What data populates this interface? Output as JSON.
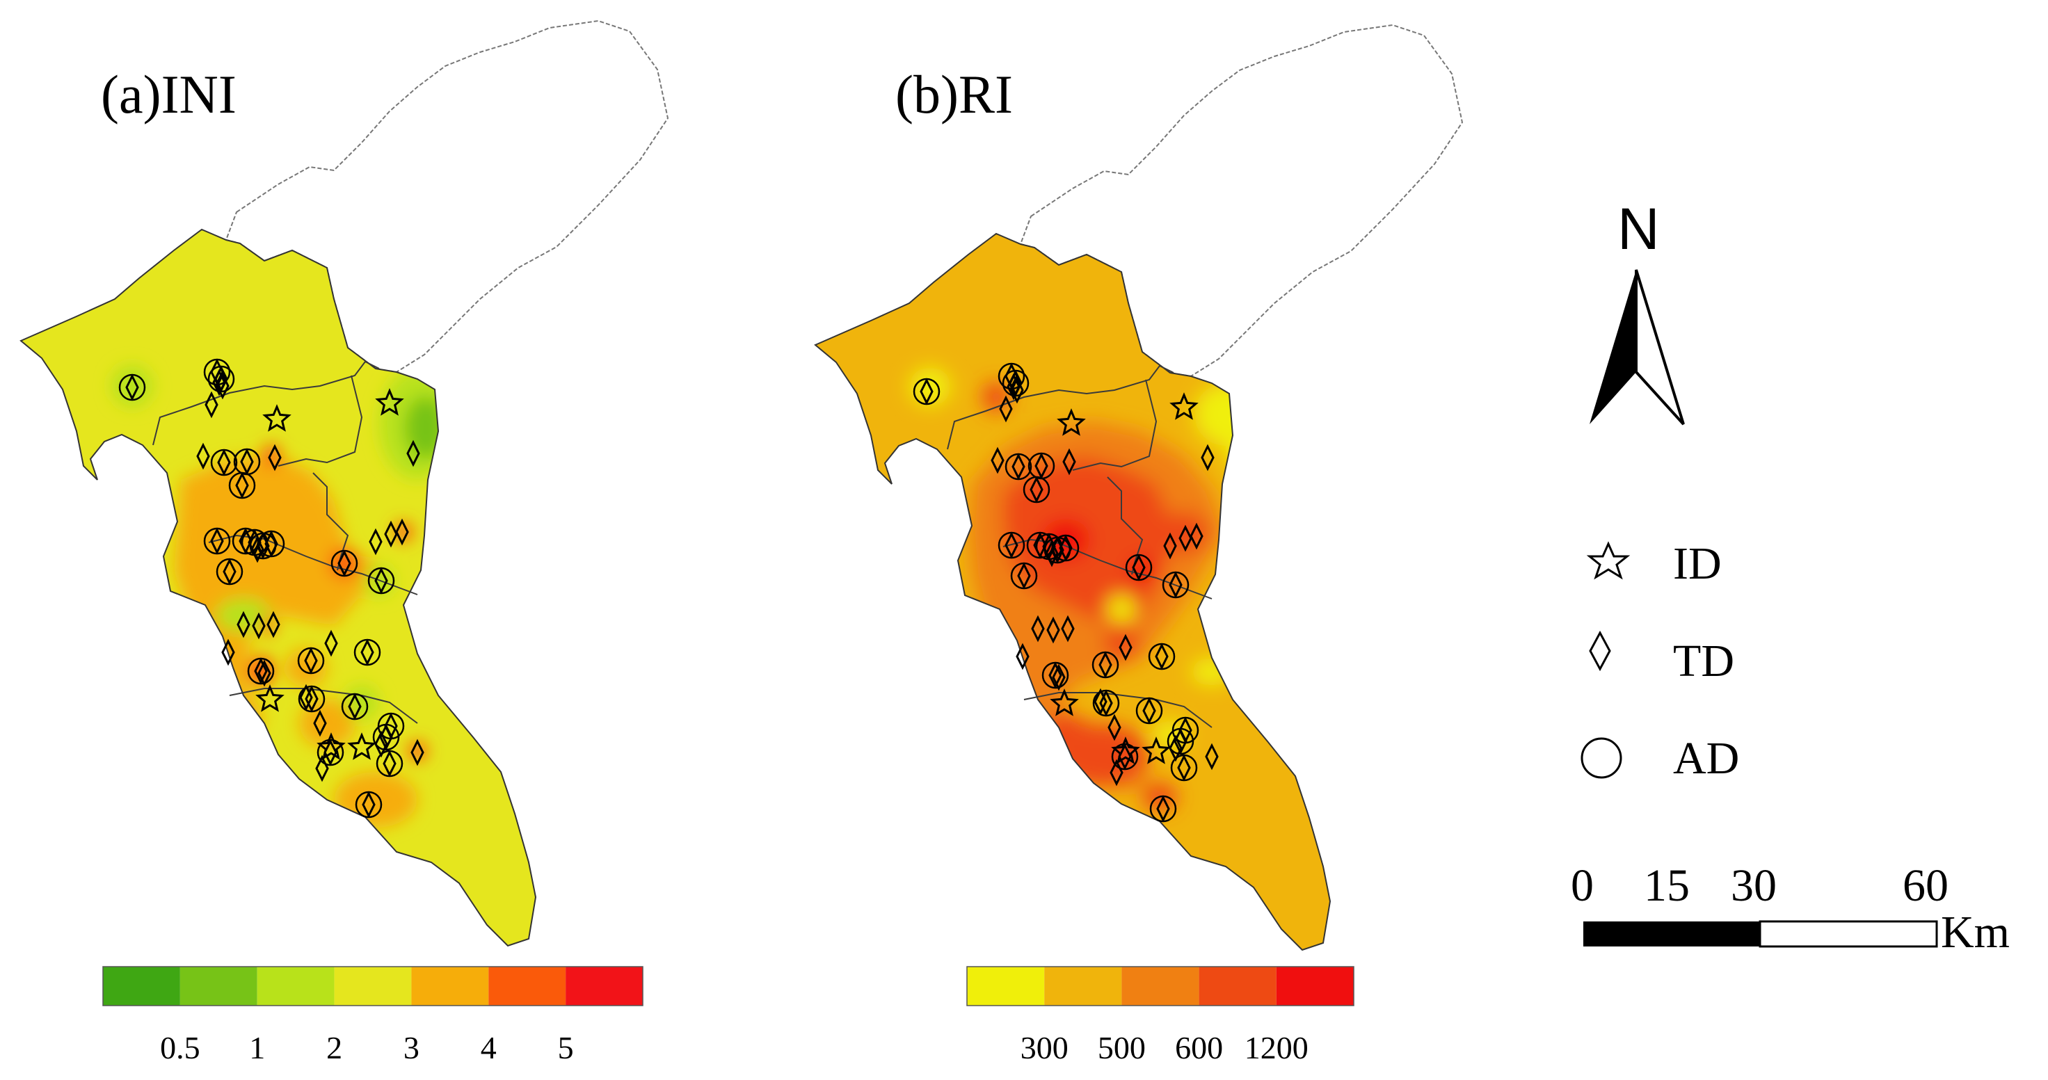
{
  "panels": {
    "a": {
      "title": "(a)INI"
    },
    "b": {
      "title": "(b)RI"
    }
  },
  "legend_ini": {
    "colors": [
      "#3fa713",
      "#77c317",
      "#b8e21a",
      "#e5e61e",
      "#f6ad0a",
      "#fa5a0a",
      "#f21318"
    ],
    "ticks": [
      "0.5",
      "1",
      "2",
      "3",
      "4",
      "5"
    ]
  },
  "legend_ri": {
    "colors": [
      "#f0ef0a",
      "#f0b40c",
      "#f08012",
      "#ee4a13",
      "#f00f0f"
    ],
    "ticks": [
      "300",
      "500",
      "600",
      "1200"
    ]
  },
  "north_arrow": {
    "label": "N",
    "icon": "north-arrow-icon"
  },
  "symbol_legend": [
    {
      "symbol": "star-icon",
      "label": "ID"
    },
    {
      "symbol": "diamond-icon",
      "label": "TD"
    },
    {
      "symbol": "circle-icon",
      "label": "AD"
    }
  ],
  "scale_bar": {
    "ticks": [
      "0",
      "15",
      "30",
      "60"
    ],
    "unit": "Km"
  },
  "colors": {
    "outline_stroke": "#777777",
    "ini_base": "#e5e61e",
    "ri_base": "#f0b40c"
  }
}
